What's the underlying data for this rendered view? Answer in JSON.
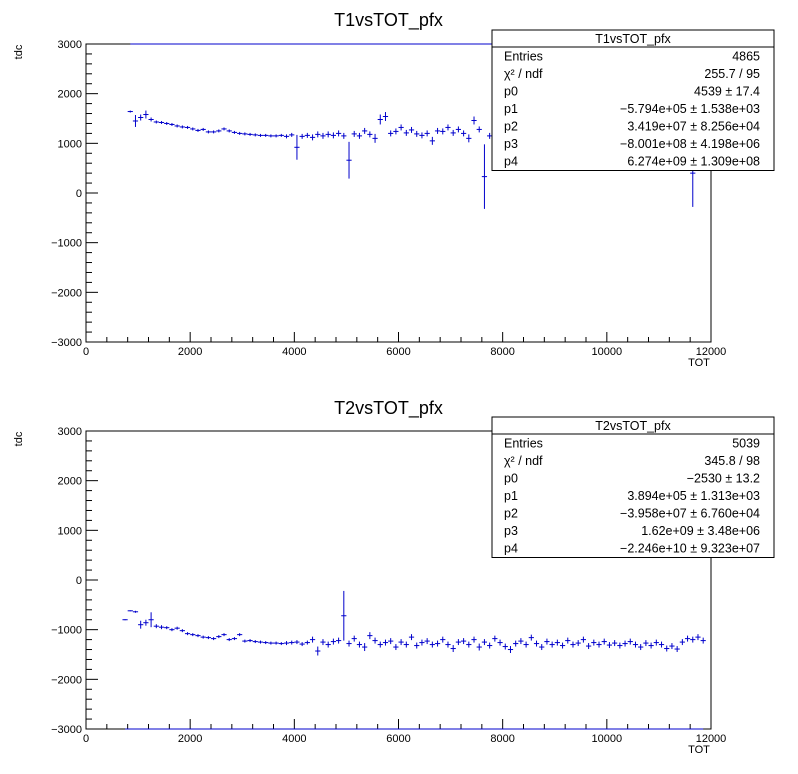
{
  "chart_data": [
    {
      "type": "scatter",
      "title": "T1vsTOT_pfx",
      "xlabel": "TOT",
      "ylabel": "tdc",
      "xlim": [
        0,
        12000
      ],
      "ylim": [
        -3000,
        3000
      ],
      "x_ticks": [
        "0",
        "2000",
        "4000",
        "6000",
        "8000",
        "10000",
        "12000"
      ],
      "y_ticks": [
        "-3000",
        "-2000",
        "-1000",
        "0",
        "1000",
        "2000",
        "3000"
      ],
      "color": "#0000cc",
      "stats": {
        "title": "T1vsTOT_pfx",
        "rows": [
          {
            "label": "Entries",
            "value": "4865"
          },
          {
            "label": "χ² / ndf",
            "value": "255.7 / 95"
          },
          {
            "label": "p0",
            "value": "4539 ± 17.4"
          },
          {
            "label": "p1",
            "value": "−5.794e+05 ± 1.538e+03"
          },
          {
            "label": "p2",
            "value": "3.419e+07 ± 8.256e+04"
          },
          {
            "label": "p3",
            "value": "−8.001e+08 ± 4.198e+06"
          },
          {
            "label": "p4",
            "value": "6.274e+09 ± 1.309e+08"
          }
        ]
      },
      "points": [
        {
          "x": 850,
          "y": 1640,
          "e": 20
        },
        {
          "x": 950,
          "y": 1450,
          "e": 120
        },
        {
          "x": 1050,
          "y": 1520,
          "e": 60
        },
        {
          "x": 1150,
          "y": 1580,
          "e": 80
        },
        {
          "x": 1250,
          "y": 1480,
          "e": 40
        },
        {
          "x": 1350,
          "y": 1430,
          "e": 30
        },
        {
          "x": 1450,
          "y": 1420,
          "e": 30
        },
        {
          "x": 1550,
          "y": 1400,
          "e": 30
        },
        {
          "x": 1650,
          "y": 1380,
          "e": 30
        },
        {
          "x": 1750,
          "y": 1350,
          "e": 30
        },
        {
          "x": 1850,
          "y": 1330,
          "e": 30
        },
        {
          "x": 1950,
          "y": 1320,
          "e": 30
        },
        {
          "x": 2050,
          "y": 1290,
          "e": 30
        },
        {
          "x": 2150,
          "y": 1260,
          "e": 30
        },
        {
          "x": 2250,
          "y": 1280,
          "e": 30
        },
        {
          "x": 2350,
          "y": 1230,
          "e": 30
        },
        {
          "x": 2450,
          "y": 1230,
          "e": 30
        },
        {
          "x": 2550,
          "y": 1250,
          "e": 30
        },
        {
          "x": 2650,
          "y": 1290,
          "e": 30
        },
        {
          "x": 2750,
          "y": 1250,
          "e": 30
        },
        {
          "x": 2850,
          "y": 1220,
          "e": 30
        },
        {
          "x": 2950,
          "y": 1200,
          "e": 30
        },
        {
          "x": 3050,
          "y": 1190,
          "e": 30
        },
        {
          "x": 3150,
          "y": 1180,
          "e": 30
        },
        {
          "x": 3250,
          "y": 1170,
          "e": 30
        },
        {
          "x": 3350,
          "y": 1160,
          "e": 30
        },
        {
          "x": 3450,
          "y": 1160,
          "e": 30
        },
        {
          "x": 3550,
          "y": 1150,
          "e": 30
        },
        {
          "x": 3650,
          "y": 1150,
          "e": 30
        },
        {
          "x": 3750,
          "y": 1160,
          "e": 30
        },
        {
          "x": 3850,
          "y": 1140,
          "e": 40
        },
        {
          "x": 3950,
          "y": 1170,
          "e": 40
        },
        {
          "x": 4050,
          "y": 920,
          "e": 250
        },
        {
          "x": 4150,
          "y": 1140,
          "e": 50
        },
        {
          "x": 4250,
          "y": 1160,
          "e": 50
        },
        {
          "x": 4350,
          "y": 1120,
          "e": 60
        },
        {
          "x": 4450,
          "y": 1180,
          "e": 60
        },
        {
          "x": 4550,
          "y": 1150,
          "e": 60
        },
        {
          "x": 4650,
          "y": 1180,
          "e": 60
        },
        {
          "x": 4750,
          "y": 1160,
          "e": 60
        },
        {
          "x": 4850,
          "y": 1200,
          "e": 60
        },
        {
          "x": 4950,
          "y": 1150,
          "e": 60
        },
        {
          "x": 5050,
          "y": 660,
          "e": 370
        },
        {
          "x": 5150,
          "y": 1190,
          "e": 60
        },
        {
          "x": 5250,
          "y": 1150,
          "e": 60
        },
        {
          "x": 5350,
          "y": 1250,
          "e": 60
        },
        {
          "x": 5450,
          "y": 1180,
          "e": 60
        },
        {
          "x": 5550,
          "y": 1100,
          "e": 90
        },
        {
          "x": 5650,
          "y": 1480,
          "e": 100
        },
        {
          "x": 5750,
          "y": 1540,
          "e": 90
        },
        {
          "x": 5850,
          "y": 1200,
          "e": 60
        },
        {
          "x": 5950,
          "y": 1240,
          "e": 60
        },
        {
          "x": 6050,
          "y": 1320,
          "e": 60
        },
        {
          "x": 6150,
          "y": 1210,
          "e": 60
        },
        {
          "x": 6250,
          "y": 1270,
          "e": 60
        },
        {
          "x": 6350,
          "y": 1190,
          "e": 60
        },
        {
          "x": 6450,
          "y": 1160,
          "e": 60
        },
        {
          "x": 6550,
          "y": 1200,
          "e": 60
        },
        {
          "x": 6650,
          "y": 1050,
          "e": 80
        },
        {
          "x": 6750,
          "y": 1250,
          "e": 60
        },
        {
          "x": 6850,
          "y": 1240,
          "e": 60
        },
        {
          "x": 6950,
          "y": 1320,
          "e": 60
        },
        {
          "x": 7050,
          "y": 1210,
          "e": 60
        },
        {
          "x": 7150,
          "y": 1280,
          "e": 60
        },
        {
          "x": 7250,
          "y": 1200,
          "e": 60
        },
        {
          "x": 7350,
          "y": 1100,
          "e": 80
        },
        {
          "x": 7450,
          "y": 1460,
          "e": 80
        },
        {
          "x": 7550,
          "y": 1280,
          "e": 60
        },
        {
          "x": 7650,
          "y": 330,
          "e": 650
        },
        {
          "x": 7750,
          "y": 1150,
          "e": 60
        },
        {
          "x": 11650,
          "y": 400,
          "e": 680
        }
      ]
    },
    {
      "type": "scatter",
      "title": "T2vsTOT_pfx",
      "xlabel": "TOT",
      "ylabel": "tdc",
      "xlim": [
        0,
        12000
      ],
      "ylim": [
        -3000,
        3000
      ],
      "x_ticks": [
        "0",
        "2000",
        "4000",
        "6000",
        "8000",
        "10000",
        "12000"
      ],
      "y_ticks": [
        "-3000",
        "-2000",
        "-1000",
        "0",
        "1000",
        "2000",
        "3000"
      ],
      "color": "#0000cc",
      "stats": {
        "title": "T2vsTOT_pfx",
        "rows": [
          {
            "label": "Entries",
            "value": "5039"
          },
          {
            "label": "χ² / ndf",
            "value": "345.8 / 98"
          },
          {
            "label": "p0",
            "value": "−2530 ± 13.2"
          },
          {
            "label": "p1",
            "value": "3.894e+05 ± 1.313e+03"
          },
          {
            "label": "p2",
            "value": "−3.958e+07 ± 6.760e+04"
          },
          {
            "label": "p3",
            "value": "1.62e+09 ± 3.48e+06"
          },
          {
            "label": "p4",
            "value": "−2.246e+10 ± 9.323e+07"
          }
        ]
      },
      "points": [
        {
          "x": 750,
          "y": -800,
          "e": 10
        },
        {
          "x": 850,
          "y": -620,
          "e": 10
        },
        {
          "x": 950,
          "y": -640,
          "e": 20
        },
        {
          "x": 1050,
          "y": -900,
          "e": 80
        },
        {
          "x": 1150,
          "y": -860,
          "e": 60
        },
        {
          "x": 1250,
          "y": -800,
          "e": 150
        },
        {
          "x": 1350,
          "y": -930,
          "e": 40
        },
        {
          "x": 1450,
          "y": -950,
          "e": 40
        },
        {
          "x": 1550,
          "y": -960,
          "e": 30
        },
        {
          "x": 1650,
          "y": -1000,
          "e": 30
        },
        {
          "x": 1750,
          "y": -970,
          "e": 30
        },
        {
          "x": 1850,
          "y": -1020,
          "e": 30
        },
        {
          "x": 1950,
          "y": -1080,
          "e": 30
        },
        {
          "x": 2050,
          "y": -1100,
          "e": 30
        },
        {
          "x": 2150,
          "y": -1120,
          "e": 30
        },
        {
          "x": 2250,
          "y": -1150,
          "e": 30
        },
        {
          "x": 2350,
          "y": -1160,
          "e": 30
        },
        {
          "x": 2450,
          "y": -1180,
          "e": 30
        },
        {
          "x": 2550,
          "y": -1140,
          "e": 30
        },
        {
          "x": 2650,
          "y": -1100,
          "e": 30
        },
        {
          "x": 2750,
          "y": -1200,
          "e": 30
        },
        {
          "x": 2850,
          "y": -1180,
          "e": 30
        },
        {
          "x": 2950,
          "y": -1100,
          "e": 30
        },
        {
          "x": 3050,
          "y": -1230,
          "e": 30
        },
        {
          "x": 3150,
          "y": -1220,
          "e": 30
        },
        {
          "x": 3250,
          "y": -1240,
          "e": 30
        },
        {
          "x": 3350,
          "y": -1250,
          "e": 30
        },
        {
          "x": 3450,
          "y": -1260,
          "e": 30
        },
        {
          "x": 3550,
          "y": -1270,
          "e": 30
        },
        {
          "x": 3650,
          "y": -1270,
          "e": 30
        },
        {
          "x": 3750,
          "y": -1280,
          "e": 30
        },
        {
          "x": 3850,
          "y": -1270,
          "e": 40
        },
        {
          "x": 3950,
          "y": -1260,
          "e": 40
        },
        {
          "x": 4050,
          "y": -1250,
          "e": 40
        },
        {
          "x": 4150,
          "y": -1290,
          "e": 40
        },
        {
          "x": 4250,
          "y": -1260,
          "e": 40
        },
        {
          "x": 4350,
          "y": -1200,
          "e": 60
        },
        {
          "x": 4450,
          "y": -1430,
          "e": 90
        },
        {
          "x": 4550,
          "y": -1250,
          "e": 60
        },
        {
          "x": 4650,
          "y": -1300,
          "e": 60
        },
        {
          "x": 4750,
          "y": -1240,
          "e": 60
        },
        {
          "x": 4850,
          "y": -1220,
          "e": 60
        },
        {
          "x": 4950,
          "y": -720,
          "e": 500
        },
        {
          "x": 5050,
          "y": -1280,
          "e": 60
        },
        {
          "x": 5150,
          "y": -1180,
          "e": 60
        },
        {
          "x": 5250,
          "y": -1300,
          "e": 60
        },
        {
          "x": 5350,
          "y": -1350,
          "e": 80
        },
        {
          "x": 5450,
          "y": -1120,
          "e": 70
        },
        {
          "x": 5550,
          "y": -1220,
          "e": 60
        },
        {
          "x": 5650,
          "y": -1300,
          "e": 60
        },
        {
          "x": 5750,
          "y": -1260,
          "e": 60
        },
        {
          "x": 5850,
          "y": -1230,
          "e": 60
        },
        {
          "x": 5950,
          "y": -1350,
          "e": 60
        },
        {
          "x": 6050,
          "y": -1250,
          "e": 60
        },
        {
          "x": 6150,
          "y": -1300,
          "e": 60
        },
        {
          "x": 6250,
          "y": -1150,
          "e": 60
        },
        {
          "x": 6350,
          "y": -1320,
          "e": 60
        },
        {
          "x": 6450,
          "y": -1260,
          "e": 60
        },
        {
          "x": 6550,
          "y": -1230,
          "e": 60
        },
        {
          "x": 6650,
          "y": -1300,
          "e": 60
        },
        {
          "x": 6750,
          "y": -1280,
          "e": 60
        },
        {
          "x": 6850,
          "y": -1200,
          "e": 60
        },
        {
          "x": 6950,
          "y": -1300,
          "e": 60
        },
        {
          "x": 7050,
          "y": -1380,
          "e": 70
        },
        {
          "x": 7150,
          "y": -1250,
          "e": 60
        },
        {
          "x": 7250,
          "y": -1230,
          "e": 60
        },
        {
          "x": 7350,
          "y": -1300,
          "e": 60
        },
        {
          "x": 7450,
          "y": -1200,
          "e": 60
        },
        {
          "x": 7550,
          "y": -1350,
          "e": 70
        },
        {
          "x": 7650,
          "y": -1250,
          "e": 60
        },
        {
          "x": 7750,
          "y": -1320,
          "e": 60
        },
        {
          "x": 7850,
          "y": -1180,
          "e": 60
        },
        {
          "x": 7950,
          "y": -1260,
          "e": 60
        },
        {
          "x": 8050,
          "y": -1340,
          "e": 60
        },
        {
          "x": 8150,
          "y": -1400,
          "e": 70
        },
        {
          "x": 8250,
          "y": -1280,
          "e": 60
        },
        {
          "x": 8350,
          "y": -1230,
          "e": 60
        },
        {
          "x": 8450,
          "y": -1300,
          "e": 60
        },
        {
          "x": 8550,
          "y": -1160,
          "e": 60
        },
        {
          "x": 8650,
          "y": -1280,
          "e": 60
        },
        {
          "x": 8750,
          "y": -1350,
          "e": 60
        },
        {
          "x": 8850,
          "y": -1240,
          "e": 60
        },
        {
          "x": 8950,
          "y": -1300,
          "e": 60
        },
        {
          "x": 9050,
          "y": -1260,
          "e": 60
        },
        {
          "x": 9150,
          "y": -1320,
          "e": 60
        },
        {
          "x": 9250,
          "y": -1220,
          "e": 60
        },
        {
          "x": 9350,
          "y": -1300,
          "e": 60
        },
        {
          "x": 9450,
          "y": -1270,
          "e": 60
        },
        {
          "x": 9550,
          "y": -1200,
          "e": 60
        },
        {
          "x": 9650,
          "y": -1330,
          "e": 60
        },
        {
          "x": 9750,
          "y": -1260,
          "e": 60
        },
        {
          "x": 9850,
          "y": -1300,
          "e": 60
        },
        {
          "x": 9950,
          "y": -1240,
          "e": 60
        },
        {
          "x": 10050,
          "y": -1310,
          "e": 60
        },
        {
          "x": 10150,
          "y": -1270,
          "e": 60
        },
        {
          "x": 10250,
          "y": -1320,
          "e": 60
        },
        {
          "x": 10350,
          "y": -1280,
          "e": 60
        },
        {
          "x": 10450,
          "y": -1240,
          "e": 60
        },
        {
          "x": 10550,
          "y": -1300,
          "e": 60
        },
        {
          "x": 10650,
          "y": -1350,
          "e": 60
        },
        {
          "x": 10750,
          "y": -1270,
          "e": 60
        },
        {
          "x": 10850,
          "y": -1320,
          "e": 60
        },
        {
          "x": 10950,
          "y": -1260,
          "e": 60
        },
        {
          "x": 11050,
          "y": -1300,
          "e": 60
        },
        {
          "x": 11150,
          "y": -1380,
          "e": 60
        },
        {
          "x": 11250,
          "y": -1330,
          "e": 60
        },
        {
          "x": 11350,
          "y": -1390,
          "e": 60
        },
        {
          "x": 11450,
          "y": -1250,
          "e": 60
        },
        {
          "x": 11550,
          "y": -1180,
          "e": 60
        },
        {
          "x": 11650,
          "y": -1200,
          "e": 60
        },
        {
          "x": 11750,
          "y": -1150,
          "e": 60
        },
        {
          "x": 11850,
          "y": -1220,
          "e": 60
        }
      ]
    }
  ]
}
